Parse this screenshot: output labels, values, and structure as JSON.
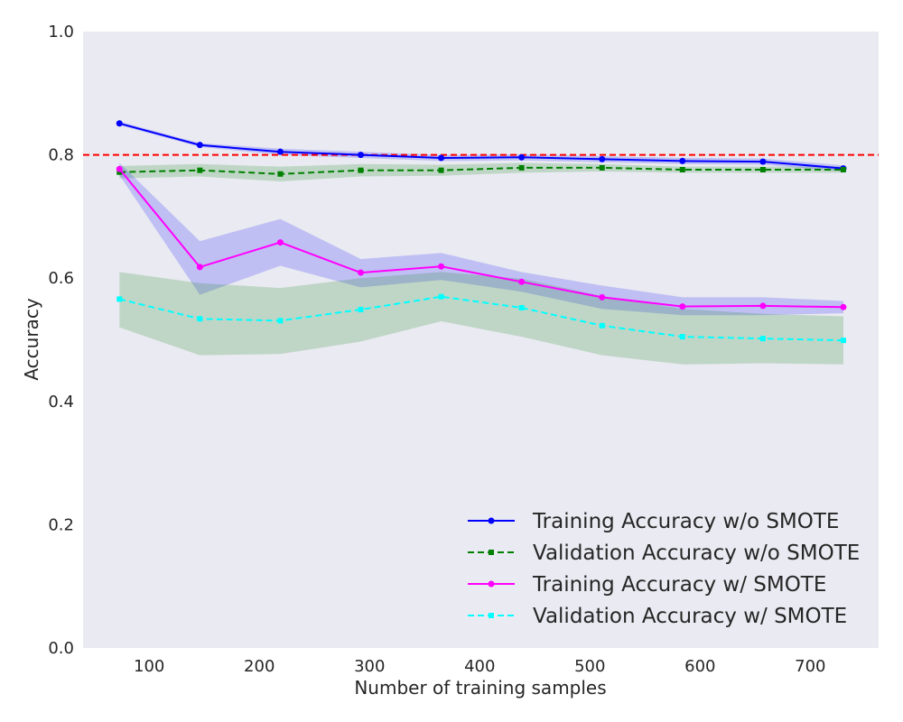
{
  "chart_data": {
    "type": "line",
    "title": "",
    "xlabel": "Number of training samples",
    "ylabel": "Accuracy",
    "xlim": [
      40,
      762
    ],
    "ylim": [
      0,
      1.0
    ],
    "xticks": [
      100,
      200,
      300,
      400,
      500,
      600,
      700
    ],
    "yticks": [
      0.0,
      0.2,
      0.4,
      0.6,
      0.8,
      1.0
    ],
    "xtick_labels": [
      "100",
      "200",
      "300",
      "400",
      "500",
      "600",
      "700"
    ],
    "ytick_labels": [
      "0.0",
      "0.2",
      "0.4",
      "0.6",
      "0.8",
      "1.0"
    ],
    "grid": false,
    "background": "#eaeaf2",
    "legend_position": "lower-right",
    "x": [
      73,
      146,
      219,
      292,
      365,
      438,
      511,
      584,
      657,
      730
    ],
    "reference_line": {
      "y": 0.8,
      "color": "#ff0000",
      "style": "dashed"
    },
    "series": [
      {
        "name": "Training Accuracy w/o SMOTE",
        "color": "#0000ff",
        "style": "solid",
        "marker": "circle",
        "values": [
          0.851,
          0.816,
          0.805,
          0.8,
          0.795,
          0.796,
          0.793,
          0.79,
          0.789,
          0.778
        ],
        "band_lower": [
          0.848,
          0.813,
          0.8,
          0.795,
          0.79,
          0.791,
          0.788,
          0.785,
          0.784,
          0.773
        ],
        "band_upper": [
          0.854,
          0.819,
          0.81,
          0.805,
          0.8,
          0.801,
          0.798,
          0.795,
          0.794,
          0.783
        ],
        "band_color": "#0000ff"
      },
      {
        "name": "Validation Accuracy w/o SMOTE",
        "color": "#008000",
        "style": "dashed",
        "marker": "square",
        "values": [
          0.772,
          0.775,
          0.769,
          0.775,
          0.775,
          0.779,
          0.779,
          0.776,
          0.776,
          0.776
        ],
        "band_lower": [
          0.762,
          0.765,
          0.757,
          0.765,
          0.766,
          0.771,
          0.773,
          0.771,
          0.771,
          0.771
        ],
        "band_upper": [
          0.782,
          0.785,
          0.781,
          0.785,
          0.784,
          0.787,
          0.785,
          0.781,
          0.781,
          0.781
        ],
        "band_color": "#008000"
      },
      {
        "name": "Training Accuracy w/ SMOTE",
        "color": "#ff00ff",
        "style": "solid",
        "marker": "circle",
        "values": [
          0.777,
          0.618,
          0.658,
          0.609,
          0.619,
          0.594,
          0.569,
          0.554,
          0.555,
          0.553
        ],
        "band_lower": [
          0.767,
          0.573,
          0.62,
          0.585,
          0.597,
          0.578,
          0.55,
          0.54,
          0.54,
          0.543
        ],
        "band_upper": [
          0.787,
          0.66,
          0.696,
          0.631,
          0.641,
          0.61,
          0.588,
          0.569,
          0.569,
          0.563
        ],
        "band_color": "#0000ff"
      },
      {
        "name": "Validation Accuracy w/ SMOTE",
        "color": "#00ffff",
        "style": "dashed",
        "marker": "square",
        "values": [
          0.566,
          0.534,
          0.531,
          0.549,
          0.57,
          0.552,
          0.523,
          0.505,
          0.502,
          0.499
        ],
        "band_lower": [
          0.52,
          0.475,
          0.477,
          0.497,
          0.53,
          0.505,
          0.475,
          0.46,
          0.462,
          0.46
        ],
        "band_upper": [
          0.61,
          0.592,
          0.584,
          0.6,
          0.61,
          0.599,
          0.571,
          0.55,
          0.542,
          0.538
        ],
        "band_color": "#008000"
      }
    ]
  }
}
